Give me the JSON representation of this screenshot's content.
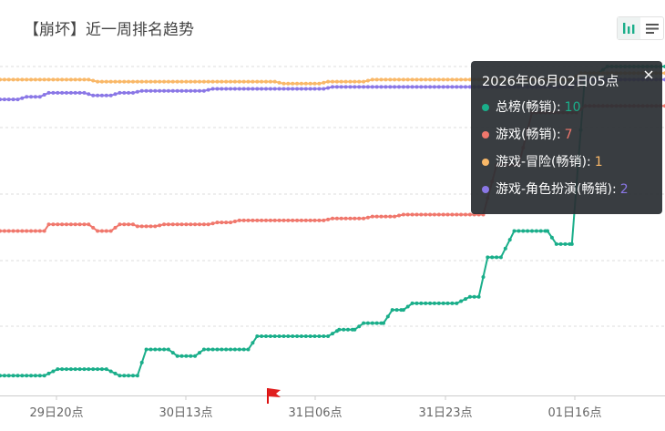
{
  "header": {
    "title": "【崩坏】近一周排名趋势"
  },
  "toolbar": {
    "chart_icon": "bar-chart-icon",
    "list_icon": "list-icon"
  },
  "tooltip": {
    "title": "2026年06月02日05点",
    "close_icon": "close-icon",
    "rows": [
      {
        "label": "总榜(畅销)",
        "value": "10",
        "color": "#1aae8a"
      },
      {
        "label": "游戏(畅销)",
        "value": "7",
        "color": "#f0776c"
      },
      {
        "label": "游戏-冒险(畅销)",
        "value": "1",
        "color": "#f9b868"
      },
      {
        "label": "游戏-角色扮演(畅销)",
        "value": "2",
        "color": "#8a77e6"
      }
    ]
  },
  "markers": {
    "flag_icon": "flag-icon"
  },
  "chart_data": {
    "type": "line",
    "x_tick_labels": [
      "29日20点",
      "30日13点",
      "31日06点",
      "31日23点",
      "01日16点"
    ],
    "y_axis": {
      "inverted": true,
      "tick_labels_visible": false,
      "grid": true
    },
    "series": [
      {
        "name": "总榜(畅销)",
        "color": "#1aae8a",
        "points": [
          [
            0,
            47
          ],
          [
            20,
            47
          ],
          [
            26,
            46
          ],
          [
            48,
            46
          ],
          [
            54,
            47
          ],
          [
            62,
            47
          ],
          [
            66,
            43
          ],
          [
            76,
            43
          ],
          [
            80,
            44
          ],
          [
            88,
            44
          ],
          [
            92,
            43
          ],
          [
            112,
            43
          ],
          [
            116,
            41
          ],
          [
            148,
            41
          ],
          [
            153,
            40
          ],
          [
            160,
            40
          ],
          [
            164,
            39
          ],
          [
            173,
            39
          ],
          [
            177,
            37
          ],
          [
            182,
            37
          ],
          [
            186,
            36
          ],
          [
            206,
            36
          ],
          [
            212,
            35
          ],
          [
            216,
            35
          ],
          [
            220,
            29
          ],
          [
            226,
            29
          ],
          [
            232,
            25
          ],
          [
            247,
            25
          ],
          [
            251,
            27
          ],
          [
            258,
            27
          ],
          [
            264,
            1
          ],
          [
            270,
            1
          ],
          [
            274,
            0
          ],
          [
            300,
            0
          ]
        ]
      },
      {
        "name": "游戏(畅销)",
        "color": "#f0776c",
        "points": [
          [
            0,
            25
          ],
          [
            20,
            25
          ],
          [
            22,
            24
          ],
          [
            40,
            24
          ],
          [
            44,
            25
          ],
          [
            50,
            25
          ],
          [
            54,
            24
          ],
          [
            60,
            24
          ],
          [
            62,
            24.3
          ],
          [
            70,
            24.3
          ],
          [
            74,
            24
          ],
          [
            94,
            24
          ],
          [
            98,
            23.7
          ],
          [
            104,
            23.7
          ],
          [
            108,
            23.4
          ],
          [
            146,
            23.4
          ],
          [
            150,
            23.1
          ],
          [
            164,
            23.1
          ],
          [
            168,
            22.8
          ],
          [
            178,
            22.8
          ],
          [
            182,
            22.5
          ],
          [
            218,
            22.5
          ],
          [
            224,
            15
          ],
          [
            234,
            15
          ],
          [
            240,
            7
          ],
          [
            260,
            7
          ],
          [
            264,
            6
          ],
          [
            300,
            6
          ]
        ]
      },
      {
        "name": "游戏-冒险(畅销)",
        "color": "#f9b868",
        "points": [
          [
            0,
            2
          ],
          [
            40,
            2
          ],
          [
            44,
            2.3
          ],
          [
            124,
            2.3
          ],
          [
            128,
            2.6
          ],
          [
            144,
            2.6
          ],
          [
            148,
            2.3
          ],
          [
            164,
            2.3
          ],
          [
            168,
            2
          ],
          [
            258,
            2
          ],
          [
            262,
            1
          ],
          [
            300,
            1
          ]
        ]
      },
      {
        "name": "游戏-角色扮演(畅销)",
        "color": "#8a77e6",
        "points": [
          [
            0,
            5
          ],
          [
            8,
            5
          ],
          [
            12,
            4.6
          ],
          [
            18,
            4.6
          ],
          [
            22,
            4
          ],
          [
            38,
            4
          ],
          [
            42,
            4.4
          ],
          [
            50,
            4.4
          ],
          [
            54,
            4
          ],
          [
            60,
            4
          ],
          [
            64,
            3.7
          ],
          [
            92,
            3.7
          ],
          [
            96,
            3.4
          ],
          [
            146,
            3.4
          ],
          [
            150,
            3.1
          ],
          [
            258,
            3.1
          ],
          [
            262,
            2
          ],
          [
            300,
            2
          ]
        ]
      }
    ]
  }
}
